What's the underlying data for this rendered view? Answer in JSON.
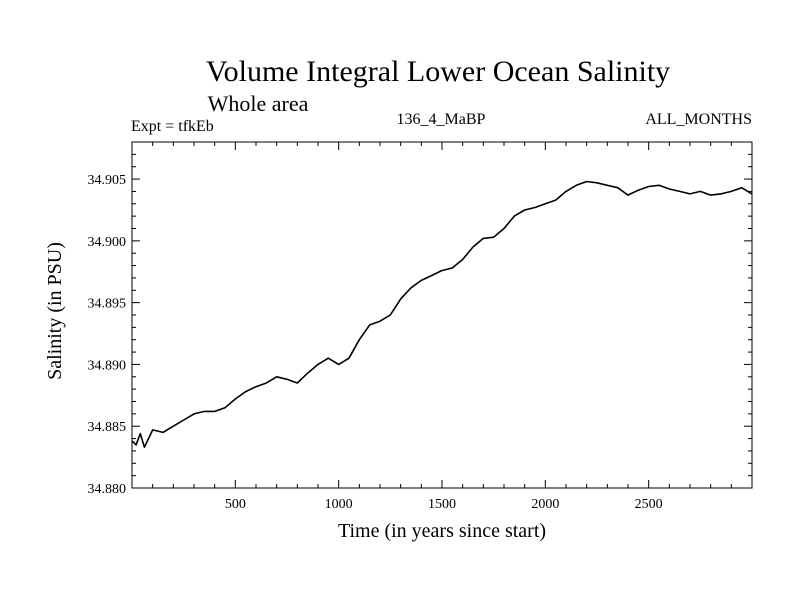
{
  "chart_data": {
    "type": "line",
    "title": "Volume Integral Lower Ocean Salinity",
    "subtitle": "Whole area",
    "annotations": {
      "left": "Expt = tfkEb",
      "center": "136_4_MaBP",
      "right": "ALL_MONTHS"
    },
    "xlabel": "Time (in years since start)",
    "ylabel": "Salinity (in PSU)",
    "xlim": [
      0,
      3000
    ],
    "ylim": [
      34.88,
      34.908
    ],
    "xticks": [
      500,
      1000,
      1500,
      2000,
      2500
    ],
    "xtick_labels": [
      "500",
      "1000",
      "1500",
      "2000",
      "2500"
    ],
    "yticks": [
      34.88,
      34.885,
      34.89,
      34.895,
      34.9,
      34.905
    ],
    "ytick_labels": [
      "34.880",
      "34.885",
      "34.890",
      "34.895",
      "34.900",
      "34.905"
    ],
    "grid": false,
    "line_color": "#000000",
    "series": [
      {
        "x": [
          0,
          20,
          40,
          60,
          80,
          100,
          150,
          200,
          250,
          300,
          350,
          400,
          450,
          500,
          550,
          600,
          650,
          700,
          750,
          800,
          850,
          900,
          950,
          1000,
          1050,
          1100,
          1150,
          1200,
          1250,
          1300,
          1350,
          1400,
          1450,
          1500,
          1550,
          1600,
          1650,
          1700,
          1750,
          1800,
          1850,
          1900,
          1950,
          2000,
          2050,
          2100,
          2150,
          2200,
          2250,
          2300,
          2350,
          2400,
          2450,
          2500,
          2550,
          2600,
          2650,
          2700,
          2750,
          2800,
          2850,
          2900,
          2950,
          3000
        ],
        "y": [
          34.8838,
          34.8835,
          34.8844,
          34.8833,
          34.884,
          34.8847,
          34.8845,
          34.885,
          34.8855,
          34.886,
          34.8862,
          34.8862,
          34.8865,
          34.8872,
          34.8878,
          34.8882,
          34.8885,
          34.889,
          34.8888,
          34.8885,
          34.8893,
          34.89,
          34.8905,
          34.89,
          34.8905,
          34.892,
          34.8932,
          34.8935,
          34.894,
          34.8953,
          34.8962,
          34.8968,
          34.8972,
          34.8976,
          34.8978,
          34.8985,
          34.8995,
          34.9002,
          34.9003,
          34.901,
          34.902,
          34.9025,
          34.9027,
          34.903,
          34.9033,
          34.904,
          34.9045,
          34.9048,
          34.9047,
          34.9045,
          34.9043,
          34.9037,
          34.9041,
          34.9044,
          34.9045,
          34.9042,
          34.904,
          34.9038,
          34.904,
          34.9037,
          34.9038,
          34.904,
          34.9043,
          34.9038
        ]
      }
    ]
  }
}
